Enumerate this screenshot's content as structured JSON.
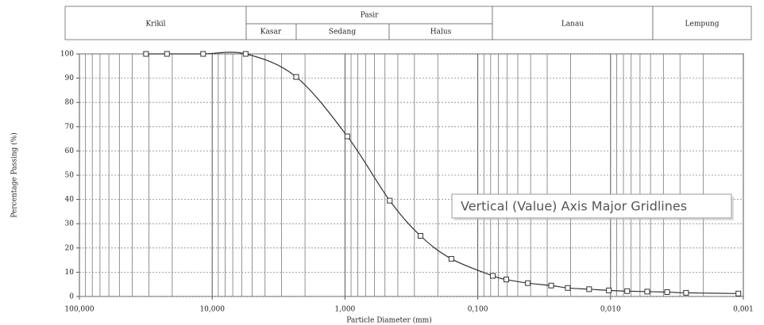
{
  "chart_data": {
    "type": "line",
    "zones": {
      "gravel": "Krikil",
      "sand": "Pasir",
      "coarse": "Kasar",
      "medium": "Sedang",
      "fine": "Halus",
      "silt": "Lanau",
      "clay": "Lempung"
    },
    "xlabel": "Particle Diameter (mm)",
    "ylabel": "Percentage Passing (%)",
    "annotation": "Vertical (Value) Axis Major Gridlines",
    "log_x": true,
    "grid": true,
    "minor_grid": true,
    "xlim": [
      100,
      0.001
    ],
    "xticks": [
      {
        "value": 100,
        "label": "100,000"
      },
      {
        "value": 10,
        "label": "10,000"
      },
      {
        "value": 1,
        "label": "1,000"
      },
      {
        "value": 0.1,
        "label": "0,100"
      },
      {
        "value": 0.01,
        "label": "0,010"
      },
      {
        "value": 0.001,
        "label": "0,001"
      }
    ],
    "ylim": [
      0,
      100
    ],
    "yticks": [
      0,
      10,
      20,
      30,
      40,
      50,
      60,
      70,
      80,
      90,
      100
    ],
    "series": [
      {
        "color": "#333333",
        "x": [
          31.5,
          21.9,
          11.7,
          5.6,
          2.33,
          0.96,
          0.46,
          0.27,
          0.158,
          0.077,
          0.061,
          0.042,
          0.028,
          0.021,
          0.0145,
          0.0103,
          0.0075,
          0.0053,
          0.00375,
          0.0027,
          0.00109
        ],
        "values": [
          100,
          100,
          100,
          100,
          90.5,
          66,
          39.5,
          25,
          15.5,
          8.5,
          7,
          5.5,
          4.5,
          3.5,
          3,
          2.5,
          2.2,
          2,
          1.8,
          1.5,
          1.2
        ]
      }
    ]
  }
}
